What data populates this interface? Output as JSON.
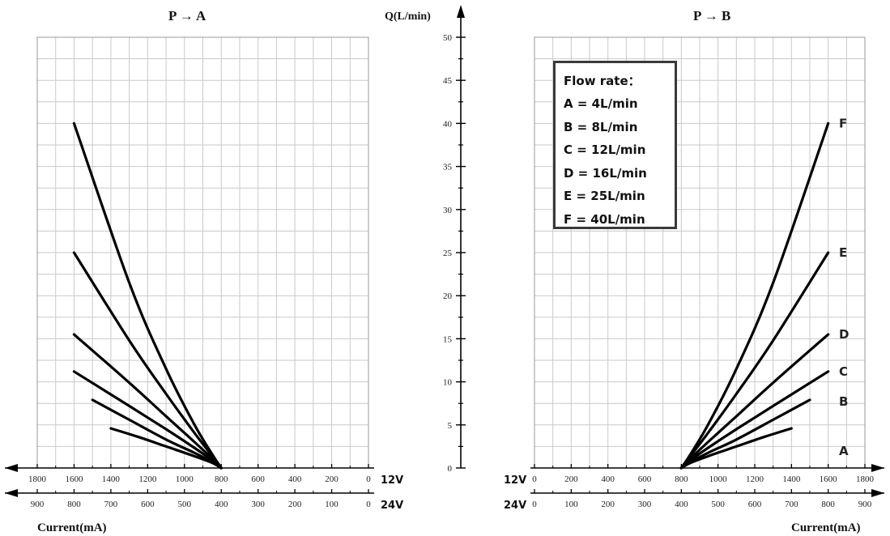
{
  "chart_data": [
    {
      "type": "line",
      "title": "P → A",
      "xlabel": "Current(mA)",
      "ylabel": "Q(L/min)",
      "x_axis_12V": {
        "label": "12V",
        "ticks": [
          1800,
          1600,
          1400,
          1200,
          1000,
          800,
          600,
          400,
          200,
          0
        ],
        "xlim": [
          0,
          1800
        ],
        "reversed": true
      },
      "x_axis_24V": {
        "label": "24V",
        "ticks": [
          900,
          800,
          700,
          600,
          500,
          400,
          300,
          200,
          100,
          0
        ],
        "xlim": [
          0,
          900
        ],
        "reversed": true
      },
      "ylim": [
        0,
        50
      ],
      "y_ticks": [
        0,
        5,
        10,
        15,
        20,
        25,
        30,
        35,
        40,
        45,
        50
      ],
      "grid": true,
      "series": [
        {
          "key": "A",
          "x": [
            800,
            850,
            950,
            1100,
            1250,
            1400
          ],
          "y": [
            0,
            0.6,
            1.4,
            2.5,
            3.6,
            4.6
          ]
        },
        {
          "key": "B",
          "x": [
            800,
            850,
            950,
            1100,
            1300,
            1500
          ],
          "y": [
            0,
            0.7,
            1.8,
            3.3,
            5.6,
            7.9
          ]
        },
        {
          "key": "C",
          "x": [
            800,
            850,
            950,
            1100,
            1300,
            1600
          ],
          "y": [
            0,
            0.9,
            2.4,
            4.5,
            7.2,
            11.2
          ]
        },
        {
          "key": "D",
          "x": [
            800,
            850,
            950,
            1100,
            1300,
            1600
          ],
          "y": [
            0,
            1.1,
            3.1,
            6.0,
            9.9,
            15.5
          ]
        },
        {
          "key": "E",
          "x": [
            800,
            850,
            950,
            1100,
            1300,
            1600
          ],
          "y": [
            0,
            1.4,
            4.2,
            8.6,
            14.8,
            25
          ]
        },
        {
          "key": "F",
          "x": [
            800,
            850,
            950,
            1100,
            1300,
            1600
          ],
          "y": [
            0,
            1.6,
            5.2,
            11.5,
            21.5,
            40
          ]
        }
      ]
    },
    {
      "type": "line",
      "title": "P → B",
      "xlabel": "Current(mA)",
      "ylabel": "",
      "x_axis_12V": {
        "label": "12V",
        "ticks": [
          0,
          200,
          400,
          600,
          800,
          1000,
          1200,
          1400,
          1600,
          1800
        ],
        "xlim": [
          0,
          1800
        ],
        "reversed": false
      },
      "x_axis_24V": {
        "label": "24V",
        "ticks": [
          0,
          100,
          200,
          300,
          400,
          500,
          600,
          700,
          800,
          900
        ],
        "xlim": [
          0,
          900
        ],
        "reversed": false
      },
      "ylim": [
        0,
        50
      ],
      "grid": true,
      "series": [
        {
          "name": "A",
          "x": [
            800,
            850,
            950,
            1100,
            1250,
            1400
          ],
          "y": [
            0,
            0.6,
            1.4,
            2.5,
            3.6,
            4.6
          ]
        },
        {
          "name": "B",
          "x": [
            800,
            850,
            950,
            1100,
            1300,
            1500
          ],
          "y": [
            0,
            0.7,
            1.8,
            3.3,
            5.6,
            7.9
          ]
        },
        {
          "name": "C",
          "x": [
            800,
            850,
            950,
            1100,
            1300,
            1600
          ],
          "y": [
            0,
            0.9,
            2.4,
            4.5,
            7.2,
            11.2
          ]
        },
        {
          "name": "D",
          "x": [
            800,
            850,
            950,
            1100,
            1300,
            1600
          ],
          "y": [
            0,
            1.1,
            3.1,
            6.0,
            9.9,
            15.5
          ]
        },
        {
          "name": "E",
          "x": [
            800,
            850,
            950,
            1100,
            1300,
            1600
          ],
          "y": [
            0,
            1.4,
            4.2,
            8.6,
            14.8,
            25
          ]
        },
        {
          "name": "F",
          "x": [
            800,
            850,
            950,
            1100,
            1300,
            1600
          ],
          "y": [
            0,
            1.6,
            5.2,
            11.5,
            21.5,
            40
          ]
        }
      ],
      "legend": {
        "title": "Flow rate：",
        "entries": [
          "A = 4L/min",
          "B = 8L/min",
          "C = 12L/min",
          "D = 16L/min",
          "E = 25L/min",
          "F = 40L/min"
        ],
        "placement": "top-left"
      }
    }
  ]
}
